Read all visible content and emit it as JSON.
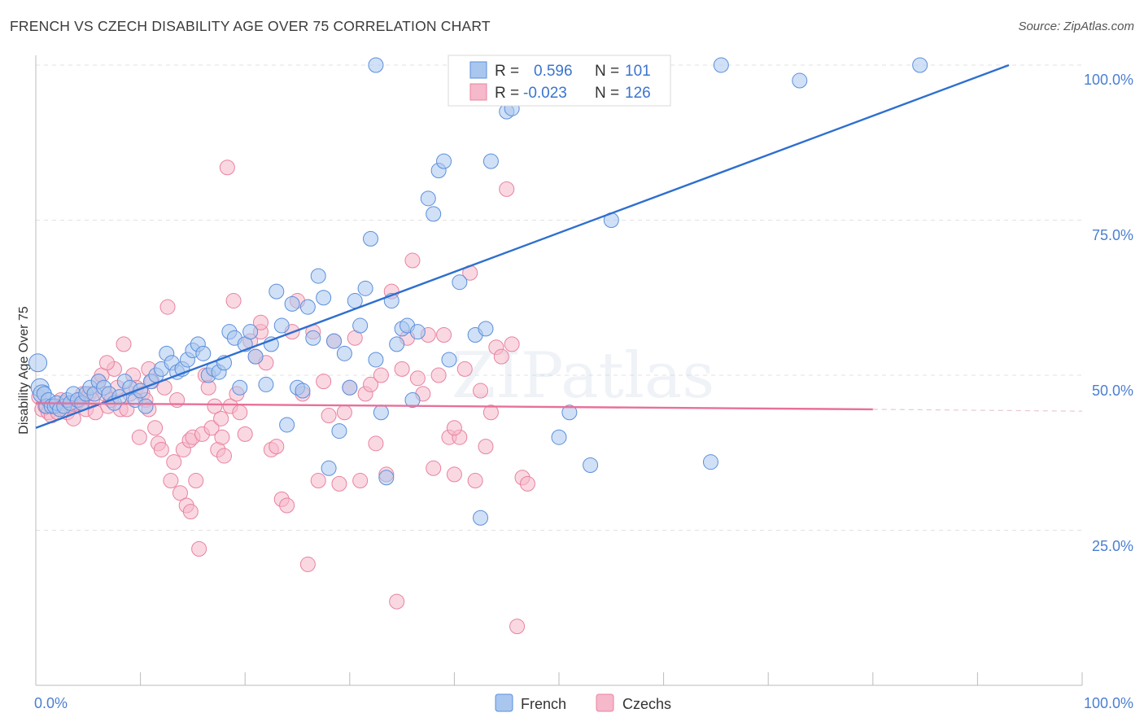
{
  "title": "FRENCH VS CZECH DISABILITY AGE OVER 75 CORRELATION CHART",
  "source": "Source: ZipAtlas.com",
  "watermark": "ZIPatlas",
  "colors": {
    "french_fill": "#a9c6ef",
    "french_stroke": "#5b8fdc",
    "french_line": "#2e6fcf",
    "czech_fill": "#f6b8cb",
    "czech_stroke": "#e8839f",
    "czech_line": "#e8709a",
    "tick_text": "#4a7fd1"
  },
  "legend": {
    "rows": [
      {
        "r_label": "R =",
        "r_value": "0.596",
        "n_label": "N =",
        "n_value": "101"
      },
      {
        "r_label": "R =",
        "r_value": "-0.023",
        "n_label": "N =",
        "n_value": "126"
      }
    ]
  },
  "bottom_legend": [
    "French",
    "Czechs"
  ],
  "chart_data": {
    "type": "scatter",
    "title": "FRENCH VS CZECH DISABILITY AGE OVER 75 CORRELATION CHART",
    "xlabel": "",
    "ylabel": "Disability Age Over 75",
    "xlim": [
      0,
      100
    ],
    "ylim": [
      0,
      100
    ],
    "x_tick_labels": [
      "0.0%",
      "100.0%"
    ],
    "y_tick_labels": [
      "100.0%",
      "75.0%",
      "50.0%",
      "25.0%"
    ],
    "grid": true,
    "legend_position": "top-center",
    "series": [
      {
        "name": "French",
        "R": 0.596,
        "N": 101,
        "trend": {
          "x": [
            0,
            93
          ],
          "y": [
            41.5,
            100
          ]
        },
        "points": [
          [
            0.2,
            52
          ],
          [
            0.4,
            48
          ],
          [
            0.6,
            47
          ],
          [
            0.8,
            47
          ],
          [
            1.0,
            45
          ],
          [
            1.2,
            46
          ],
          [
            1.5,
            45
          ],
          [
            1.8,
            45
          ],
          [
            2.0,
            45.5
          ],
          [
            2.3,
            44.5
          ],
          [
            2.7,
            45
          ],
          [
            3.0,
            46
          ],
          [
            3.3,
            45.5
          ],
          [
            3.6,
            47
          ],
          [
            4.0,
            46
          ],
          [
            4.4,
            45.5
          ],
          [
            4.8,
            47
          ],
          [
            5.2,
            48
          ],
          [
            5.6,
            47
          ],
          [
            6.0,
            49
          ],
          [
            6.5,
            48
          ],
          [
            7.0,
            47
          ],
          [
            7.5,
            45.5
          ],
          [
            8.0,
            46.5
          ],
          [
            8.5,
            49
          ],
          [
            9.0,
            48
          ],
          [
            9.5,
            46
          ],
          [
            10.0,
            47.5
          ],
          [
            10.5,
            45
          ],
          [
            11.0,
            49
          ],
          [
            11.5,
            50
          ],
          [
            12.0,
            51
          ],
          [
            12.5,
            53.5
          ],
          [
            13.0,
            52
          ],
          [
            13.5,
            50.5
          ],
          [
            14.0,
            51
          ],
          [
            14.5,
            52.5
          ],
          [
            15.0,
            54
          ],
          [
            15.5,
            55
          ],
          [
            16.0,
            53.5
          ],
          [
            16.5,
            50
          ],
          [
            17.0,
            51
          ],
          [
            17.5,
            50.5
          ],
          [
            18.0,
            52
          ],
          [
            18.5,
            57
          ],
          [
            19.0,
            56
          ],
          [
            19.5,
            48
          ],
          [
            20.0,
            55
          ],
          [
            20.5,
            57
          ],
          [
            21.0,
            53
          ],
          [
            22.0,
            48.5
          ],
          [
            22.5,
            55
          ],
          [
            23.0,
            63.5
          ],
          [
            23.5,
            58
          ],
          [
            24.0,
            42
          ],
          [
            24.5,
            61.5
          ],
          [
            25.0,
            48
          ],
          [
            25.5,
            47.5
          ],
          [
            26.0,
            61
          ],
          [
            26.5,
            56
          ],
          [
            27.0,
            66
          ],
          [
            27.5,
            62.5
          ],
          [
            28.0,
            35
          ],
          [
            28.5,
            55.5
          ],
          [
            29.0,
            41
          ],
          [
            29.5,
            53.5
          ],
          [
            30.0,
            48
          ],
          [
            30.5,
            62
          ],
          [
            31.0,
            58
          ],
          [
            31.5,
            64
          ],
          [
            32.0,
            72
          ],
          [
            32.5,
            52.5
          ],
          [
            33.0,
            44
          ],
          [
            33.5,
            33.5
          ],
          [
            34.0,
            62
          ],
          [
            34.5,
            55
          ],
          [
            35.0,
            57.5
          ],
          [
            35.5,
            58
          ],
          [
            36.0,
            46
          ],
          [
            36.5,
            57
          ],
          [
            37.5,
            78.5
          ],
          [
            38.0,
            76
          ],
          [
            38.5,
            83
          ],
          [
            39.0,
            84.5
          ],
          [
            39.5,
            52.5
          ],
          [
            40.5,
            65
          ],
          [
            42.0,
            56.5
          ],
          [
            42.5,
            27
          ],
          [
            43.0,
            57.5
          ],
          [
            43.5,
            84.5
          ],
          [
            45.0,
            92.5
          ],
          [
            45.5,
            93
          ],
          [
            50.0,
            40
          ],
          [
            51.0,
            44
          ],
          [
            53.0,
            35.5
          ],
          [
            55.0,
            75
          ],
          [
            64.5,
            36
          ],
          [
            73.0,
            97.5
          ],
          [
            65.5,
            100
          ],
          [
            84.5,
            100
          ],
          [
            32.5,
            100
          ]
        ]
      },
      {
        "name": "Czechs",
        "R": -0.023,
        "N": 126,
        "trend": {
          "x": [
            0,
            80
          ],
          "y": [
            45.5,
            44.5
          ]
        },
        "trend_dashed": {
          "x": [
            80,
            100
          ],
          "y": [
            44.5,
            44.2
          ]
        },
        "points": [
          [
            0.3,
            46.5
          ],
          [
            0.6,
            44.5
          ],
          [
            0.9,
            45
          ],
          [
            1.2,
            44
          ],
          [
            1.5,
            43.5
          ],
          [
            1.8,
            45
          ],
          [
            2.1,
            44
          ],
          [
            2.4,
            46
          ],
          [
            2.7,
            45.5
          ],
          [
            3.0,
            44
          ],
          [
            3.3,
            45
          ],
          [
            3.6,
            43
          ],
          [
            3.9,
            45.5
          ],
          [
            4.2,
            46
          ],
          [
            4.5,
            47
          ],
          [
            4.8,
            44.5
          ],
          [
            5.1,
            47
          ],
          [
            5.4,
            46
          ],
          [
            5.7,
            44
          ],
          [
            6.0,
            49
          ],
          [
            6.3,
            50
          ],
          [
            6.6,
            47
          ],
          [
            6.9,
            45
          ],
          [
            7.2,
            46
          ],
          [
            7.5,
            51
          ],
          [
            7.8,
            48
          ],
          [
            8.1,
            44.5
          ],
          [
            8.4,
            55
          ],
          [
            8.7,
            44.5
          ],
          [
            9.0,
            47
          ],
          [
            9.3,
            50
          ],
          [
            9.6,
            48
          ],
          [
            9.9,
            40
          ],
          [
            10.2,
            47
          ],
          [
            10.5,
            46
          ],
          [
            10.8,
            51
          ],
          [
            11.1,
            49
          ],
          [
            11.4,
            41.5
          ],
          [
            11.7,
            39
          ],
          [
            12.0,
            38
          ],
          [
            12.3,
            48
          ],
          [
            12.6,
            61
          ],
          [
            12.9,
            33
          ],
          [
            13.2,
            36
          ],
          [
            13.5,
            46
          ],
          [
            13.8,
            31
          ],
          [
            14.1,
            38
          ],
          [
            14.4,
            29
          ],
          [
            14.7,
            39.5
          ],
          [
            15.0,
            40
          ],
          [
            15.3,
            33
          ],
          [
            15.6,
            22
          ],
          [
            15.9,
            40.5
          ],
          [
            16.2,
            50
          ],
          [
            16.5,
            48
          ],
          [
            16.8,
            41.5
          ],
          [
            17.1,
            45
          ],
          [
            17.4,
            38
          ],
          [
            17.7,
            43
          ],
          [
            18.0,
            37
          ],
          [
            18.3,
            83.5
          ],
          [
            18.6,
            45
          ],
          [
            18.9,
            62
          ],
          [
            19.2,
            47
          ],
          [
            19.5,
            44
          ],
          [
            20.0,
            40.5
          ],
          [
            20.5,
            55.5
          ],
          [
            21.0,
            53
          ],
          [
            21.5,
            57
          ],
          [
            22.0,
            52
          ],
          [
            22.5,
            38
          ],
          [
            23.0,
            38.5
          ],
          [
            23.5,
            30
          ],
          [
            24.0,
            29
          ],
          [
            24.5,
            57
          ],
          [
            25.0,
            62
          ],
          [
            25.5,
            47
          ],
          [
            26.0,
            19.5
          ],
          [
            26.5,
            57
          ],
          [
            27.0,
            33
          ],
          [
            27.5,
            49
          ],
          [
            28.0,
            43.5
          ],
          [
            28.5,
            55.5
          ],
          [
            29.0,
            32.5
          ],
          [
            29.5,
            44
          ],
          [
            30.0,
            48
          ],
          [
            30.5,
            56
          ],
          [
            31.0,
            33
          ],
          [
            31.5,
            47
          ],
          [
            32.0,
            48.5
          ],
          [
            32.5,
            39
          ],
          [
            33.0,
            50
          ],
          [
            33.5,
            34
          ],
          [
            34.0,
            63.5
          ],
          [
            34.5,
            13.5
          ],
          [
            35.0,
            51
          ],
          [
            35.5,
            56
          ],
          [
            36.0,
            68.5
          ],
          [
            36.5,
            49.5
          ],
          [
            37.0,
            47
          ],
          [
            37.5,
            56.5
          ],
          [
            38.0,
            35
          ],
          [
            38.5,
            50
          ],
          [
            39.0,
            56.5
          ],
          [
            39.5,
            40
          ],
          [
            40.0,
            34
          ],
          [
            40.5,
            40
          ],
          [
            41.0,
            51
          ],
          [
            41.5,
            66.5
          ],
          [
            42.0,
            33
          ],
          [
            42.5,
            47.5
          ],
          [
            43.0,
            38.5
          ],
          [
            43.5,
            44
          ],
          [
            44.0,
            54.5
          ],
          [
            44.5,
            53
          ],
          [
            45.0,
            80
          ],
          [
            45.5,
            55
          ],
          [
            46.0,
            9.5
          ],
          [
            46.5,
            33.5
          ],
          [
            47.0,
            32.5
          ],
          [
            14.8,
            28
          ],
          [
            21.5,
            58.5
          ],
          [
            17.8,
            40
          ],
          [
            10.8,
            44.5
          ],
          [
            6.8,
            52
          ],
          [
            40.0,
            41.5
          ]
        ]
      }
    ]
  }
}
